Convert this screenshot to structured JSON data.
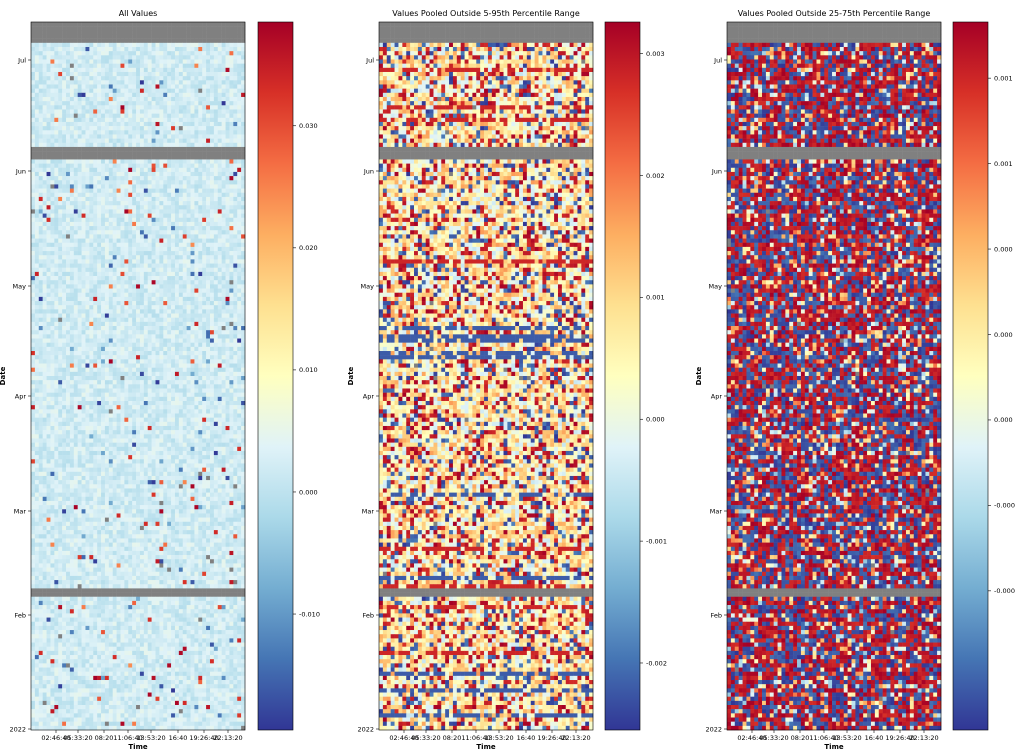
{
  "chart_data": [
    {
      "type": "heatmap",
      "title": "All Values",
      "xlabel": "Time",
      "ylabel": "Date",
      "x_ticks": [
        "02:46:40",
        "05:33:20",
        "08:20",
        "11:06:40",
        "13:53:20",
        "16:40",
        "19:26:40",
        "22:13:20"
      ],
      "y_ticks": [
        "Jul",
        "Jun",
        "May",
        "Apr",
        "Mar",
        "Feb",
        "2022"
      ],
      "colorbar": {
        "colormap": "RdYlBu_r",
        "vmin": -0.0195,
        "vmax": 0.0385,
        "ticks": [
          -0.01,
          0.0,
          0.01,
          0.02,
          0.03
        ],
        "tick_labels": [
          "-0.010",
          "0.000",
          "0.010",
          "0.020",
          "0.030"
        ]
      },
      "missing_color": "#808080",
      "cell_pattern": "mostly light blue (about 0.000 to 0.003) with sparse scattered red and dark blue outliers"
    },
    {
      "type": "heatmap",
      "title": "Values Pooled Outside 5-95th Percentile Range",
      "xlabel": "Time",
      "ylabel": "Date",
      "x_ticks": [
        "02:46:40",
        "05:33:20",
        "08:20",
        "11:06:40",
        "13:53:20",
        "16:40",
        "19:26:40",
        "22:13:20"
      ],
      "y_ticks": [
        "Jul",
        "Jun",
        "May",
        "Apr",
        "Mar",
        "Feb",
        "2022"
      ],
      "colorbar": {
        "colormap": "RdYlBu_r",
        "vmin": -0.00255,
        "vmax": 0.00326,
        "ticks": [
          -0.002,
          -0.001,
          0.0,
          0.001,
          0.002,
          0.003
        ],
        "tick_labels": [
          "-0.002",
          "-0.001",
          "0.000",
          "0.001",
          "0.002",
          "0.003"
        ]
      },
      "missing_color": "#808080",
      "cell_pattern": "mixed yellow, orange and light blue with frequent red and dark blue rows"
    },
    {
      "type": "heatmap",
      "title": "Values Pooled Outside 25-75th Percentile Range",
      "xlabel": "Time",
      "ylabel": "Date",
      "x_ticks": [
        "02:46:40",
        "05:33:20",
        "08:20",
        "11:06:40",
        "13:53:20",
        "16:40",
        "19:26:40",
        "22:13:20"
      ],
      "y_ticks": [
        "Jul",
        "Jun",
        "May",
        "Apr",
        "Mar",
        "Feb",
        "2022"
      ],
      "colorbar": {
        "colormap": "RdYlBu_r",
        "ticks": [
          -0.0007,
          -0.00035,
          0.0,
          0.00035,
          0.0007,
          0.00105,
          0.0014
        ],
        "tick_labels": [
          "-0.000",
          "-0.000",
          "0.000",
          "0.000",
          "0.000",
          "0.001",
          "0.001"
        ]
      },
      "missing_color": "#808080",
      "cell_pattern": "predominantly saturated dark red and dark blue with a few lighter cells"
    }
  ]
}
